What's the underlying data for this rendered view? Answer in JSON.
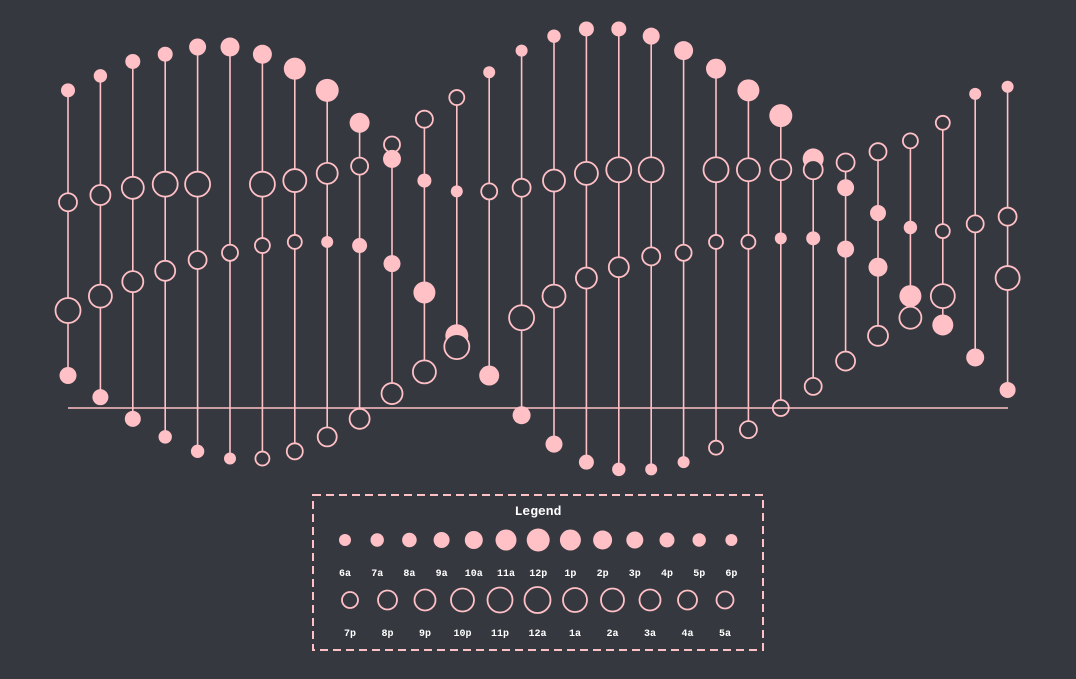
{
  "colors": {
    "background": "#363840",
    "accent": "#ffc0c6"
  },
  "chart_data": {
    "type": "scatter",
    "description_note": "Hourly dot-strip chart: each vertical line is one column of readings; filled markers = daytime hours (6a-6p), open markers = nighttime hours (7p-5a); marker size encodes the hour.",
    "y_axis": {
      "min": 0,
      "max": 100
    },
    "baseline_value": 0,
    "legend": {
      "title": "Legend",
      "filled": [
        {
          "label": "6a",
          "r": 6
        },
        {
          "label": "7a",
          "r": 6.7
        },
        {
          "label": "8a",
          "r": 7.3
        },
        {
          "label": "9a",
          "r": 8
        },
        {
          "label": "10a",
          "r": 9
        },
        {
          "label": "11a",
          "r": 10.5
        },
        {
          "label": "12p",
          "r": 11.5
        },
        {
          "label": "1p",
          "r": 10.5
        },
        {
          "label": "2p",
          "r": 9.5
        },
        {
          "label": "3p",
          "r": 8.5
        },
        {
          "label": "4p",
          "r": 7.5
        },
        {
          "label": "5p",
          "r": 6.7
        },
        {
          "label": "6p",
          "r": 6
        }
      ],
      "open": [
        {
          "label": "7p",
          "r": 8
        },
        {
          "label": "8p",
          "r": 9.5
        },
        {
          "label": "9p",
          "r": 10.5
        },
        {
          "label": "10p",
          "r": 11.5
        },
        {
          "label": "11p",
          "r": 12.5
        },
        {
          "label": "12a",
          "r": 13
        },
        {
          "label": "1a",
          "r": 12
        },
        {
          "label": "2a",
          "r": 11.5
        },
        {
          "label": "3a",
          "r": 10.5
        },
        {
          "label": "4a",
          "r": 9.5
        },
        {
          "label": "5a",
          "r": 8.5
        }
      ]
    },
    "columns": [
      {
        "points": [
          {
            "v": 88,
            "f": true,
            "r": 7
          },
          {
            "v": 57,
            "f": false,
            "r": 9
          },
          {
            "v": 27,
            "f": false,
            "r": 12.5
          },
          {
            "v": 9,
            "f": true,
            "r": 8.5
          }
        ]
      },
      {
        "points": [
          {
            "v": 92,
            "f": true,
            "r": 6.7
          },
          {
            "v": 59,
            "f": false,
            "r": 10
          },
          {
            "v": 31,
            "f": false,
            "r": 11.5
          },
          {
            "v": 3,
            "f": true,
            "r": 8
          }
        ]
      },
      {
        "points": [
          {
            "v": 96,
            "f": true,
            "r": 7.5
          },
          {
            "v": 61,
            "f": false,
            "r": 11
          },
          {
            "v": 35,
            "f": false,
            "r": 10.5
          },
          {
            "v": -3,
            "f": true,
            "r": 8
          }
        ]
      },
      {
        "points": [
          {
            "v": 98,
            "f": true,
            "r": 7.5
          },
          {
            "v": 62,
            "f": false,
            "r": 12.5
          },
          {
            "v": 38,
            "f": false,
            "r": 10
          },
          {
            "v": -8,
            "f": true,
            "r": 6.7
          }
        ]
      },
      {
        "points": [
          {
            "v": 100,
            "f": true,
            "r": 8.5
          },
          {
            "v": 62,
            "f": false,
            "r": 12.5
          },
          {
            "v": 41,
            "f": false,
            "r": 9
          },
          {
            "v": -12,
            "f": true,
            "r": 6.7
          }
        ]
      },
      {
        "points": [
          {
            "v": 100,
            "f": true,
            "r": 9.5
          },
          {
            "v": 43,
            "f": false,
            "r": 8
          },
          {
            "v": -14,
            "f": true,
            "r": 6
          }
        ]
      },
      {
        "points": [
          {
            "v": 98,
            "f": true,
            "r": 9.5
          },
          {
            "v": 62,
            "f": false,
            "r": 12.5
          },
          {
            "v": 45,
            "f": false,
            "r": 7.5
          },
          {
            "v": -14,
            "f": false,
            "r": 7
          }
        ]
      },
      {
        "points": [
          {
            "v": 94,
            "f": true,
            "r": 11
          },
          {
            "v": 63,
            "f": false,
            "r": 11.5
          },
          {
            "v": 46,
            "f": false,
            "r": 7
          },
          {
            "v": -12,
            "f": false,
            "r": 8
          }
        ]
      },
      {
        "points": [
          {
            "v": 88,
            "f": true,
            "r": 11.5
          },
          {
            "v": 65,
            "f": false,
            "r": 10.5
          },
          {
            "v": 46,
            "f": true,
            "r": 6
          },
          {
            "v": -8,
            "f": false,
            "r": 9.5
          }
        ]
      },
      {
        "points": [
          {
            "v": 79,
            "f": true,
            "r": 10
          },
          {
            "v": 67,
            "f": false,
            "r": 8.5
          },
          {
            "v": 45,
            "f": true,
            "r": 7.5
          },
          {
            "v": -3,
            "f": false,
            "r": 10
          }
        ]
      },
      {
        "points": [
          {
            "v": 73,
            "f": false,
            "r": 8
          },
          {
            "v": 69,
            "f": true,
            "r": 9
          },
          {
            "v": 40,
            "f": true,
            "r": 8.5
          },
          {
            "v": 4,
            "f": false,
            "r": 10.5
          }
        ]
      },
      {
        "points": [
          {
            "v": 80,
            "f": false,
            "r": 8.5
          },
          {
            "v": 63,
            "f": true,
            "r": 7
          },
          {
            "v": 32,
            "f": true,
            "r": 11
          },
          {
            "v": 10,
            "f": false,
            "r": 11.5
          }
        ]
      },
      {
        "points": [
          {
            "v": 86,
            "f": false,
            "r": 7.5
          },
          {
            "v": 60,
            "f": true,
            "r": 6
          },
          {
            "v": 20,
            "f": true,
            "r": 11.5
          },
          {
            "v": 17,
            "f": false,
            "r": 12.5
          }
        ]
      },
      {
        "points": [
          {
            "v": 93,
            "f": true,
            "r": 6
          },
          {
            "v": 60,
            "f": false,
            "r": 8
          },
          {
            "v": 9,
            "f": true,
            "r": 10
          }
        ]
      },
      {
        "points": [
          {
            "v": 99,
            "f": true,
            "r": 6
          },
          {
            "v": 61,
            "f": false,
            "r": 9
          },
          {
            "v": 25,
            "f": false,
            "r": 12.5
          },
          {
            "v": -2,
            "f": true,
            "r": 9
          }
        ]
      },
      {
        "points": [
          {
            "v": 103,
            "f": true,
            "r": 6.7
          },
          {
            "v": 63,
            "f": false,
            "r": 11
          },
          {
            "v": 31,
            "f": false,
            "r": 11.5
          },
          {
            "v": -10,
            "f": true,
            "r": 8.5
          }
        ]
      },
      {
        "points": [
          {
            "v": 105,
            "f": true,
            "r": 7.5
          },
          {
            "v": 65,
            "f": false,
            "r": 11.5
          },
          {
            "v": 36,
            "f": false,
            "r": 10.5
          },
          {
            "v": -15,
            "f": true,
            "r": 7.5
          }
        ]
      },
      {
        "points": [
          {
            "v": 105,
            "f": true,
            "r": 7.5
          },
          {
            "v": 66,
            "f": false,
            "r": 12.5
          },
          {
            "v": 39,
            "f": false,
            "r": 10
          },
          {
            "v": -17,
            "f": true,
            "r": 6.7
          }
        ]
      },
      {
        "points": [
          {
            "v": 103,
            "f": true,
            "r": 8.5
          },
          {
            "v": 66,
            "f": false,
            "r": 12.5
          },
          {
            "v": 42,
            "f": false,
            "r": 9
          },
          {
            "v": -17,
            "f": true,
            "r": 6
          }
        ]
      },
      {
        "points": [
          {
            "v": 99,
            "f": true,
            "r": 9.5
          },
          {
            "v": 43,
            "f": false,
            "r": 8
          },
          {
            "v": -15,
            "f": true,
            "r": 6
          }
        ]
      },
      {
        "points": [
          {
            "v": 94,
            "f": true,
            "r": 10
          },
          {
            "v": 66,
            "f": false,
            "r": 12.5
          },
          {
            "v": 46,
            "f": false,
            "r": 7
          },
          {
            "v": -11,
            "f": false,
            "r": 7
          }
        ]
      },
      {
        "points": [
          {
            "v": 88,
            "f": true,
            "r": 11
          },
          {
            "v": 66,
            "f": false,
            "r": 11.5
          },
          {
            "v": 46,
            "f": false,
            "r": 7
          },
          {
            "v": -6,
            "f": false,
            "r": 8.5
          }
        ]
      },
      {
        "points": [
          {
            "v": 81,
            "f": true,
            "r": 11.5
          },
          {
            "v": 66,
            "f": false,
            "r": 10.5
          },
          {
            "v": 47,
            "f": true,
            "r": 6
          },
          {
            "v": 0,
            "f": false,
            "r": 8
          }
        ]
      },
      {
        "points": [
          {
            "v": 69,
            "f": true,
            "r": 10.5
          },
          {
            "v": 66,
            "f": false,
            "r": 9.5
          },
          {
            "v": 47,
            "f": true,
            "r": 7
          },
          {
            "v": 6,
            "f": false,
            "r": 8.5
          }
        ]
      },
      {
        "points": [
          {
            "v": 68,
            "f": false,
            "r": 9
          },
          {
            "v": 61,
            "f": true,
            "r": 8.5
          },
          {
            "v": 44,
            "f": true,
            "r": 8.5
          },
          {
            "v": 13,
            "f": false,
            "r": 9.5
          }
        ]
      },
      {
        "points": [
          {
            "v": 71,
            "f": false,
            "r": 8.5
          },
          {
            "v": 54,
            "f": true,
            "r": 8
          },
          {
            "v": 39,
            "f": true,
            "r": 9.5
          },
          {
            "v": 20,
            "f": false,
            "r": 10
          }
        ]
      },
      {
        "points": [
          {
            "v": 74,
            "f": false,
            "r": 7.5
          },
          {
            "v": 50,
            "f": true,
            "r": 6.7
          },
          {
            "v": 31,
            "f": true,
            "r": 11
          },
          {
            "v": 25,
            "f": false,
            "r": 11
          }
        ]
      },
      {
        "points": [
          {
            "v": 79,
            "f": false,
            "r": 7
          },
          {
            "v": 49,
            "f": false,
            "r": 7
          },
          {
            "v": 31,
            "f": false,
            "r": 12
          },
          {
            "v": 23,
            "f": true,
            "r": 10.5
          }
        ]
      },
      {
        "points": [
          {
            "v": 87,
            "f": true,
            "r": 6
          },
          {
            "v": 51,
            "f": false,
            "r": 8.5
          },
          {
            "v": 14,
            "f": true,
            "r": 9
          }
        ]
      },
      {
        "points": [
          {
            "v": 89,
            "f": true,
            "r": 6
          },
          {
            "v": 53,
            "f": false,
            "r": 9
          },
          {
            "v": 36,
            "f": false,
            "r": 12
          },
          {
            "v": 5,
            "f": true,
            "r": 8
          }
        ]
      }
    ]
  }
}
